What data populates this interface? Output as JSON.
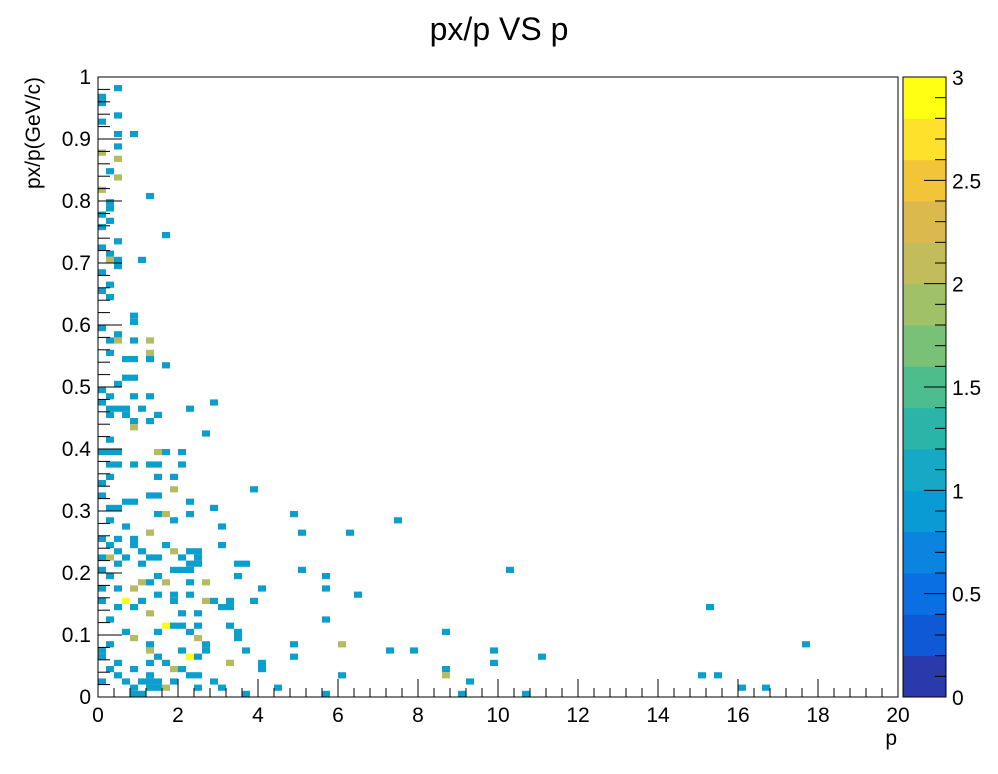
{
  "chart_data": {
    "type": "heatmap",
    "title": "px/p VS p",
    "xlabel": "p",
    "ylabel": "px/p(GeV/c)",
    "xlim": [
      0,
      20
    ],
    "ylim": [
      0,
      1
    ],
    "x_ticks": [
      "0",
      "2",
      "4",
      "6",
      "8",
      "10",
      "12",
      "14",
      "16",
      "18",
      "20"
    ],
    "y_ticks": [
      "0",
      "0.1",
      "0.2",
      "0.3",
      "0.4",
      "0.5",
      "0.6",
      "0.7",
      "0.8",
      "0.9",
      "1"
    ],
    "colorbar": {
      "range": [
        0,
        3
      ],
      "ticks": [
        "0",
        "0.5",
        "1",
        "1.5",
        "2",
        "2.5",
        "3"
      ],
      "colors": [
        "#2a3aab",
        "#0f58d6",
        "#0a6fe2",
        "#0a84de",
        "#0a9ad4",
        "#16a8c4",
        "#2ab5a8",
        "#4dbd8d",
        "#78c177",
        "#a0c167",
        "#c3bc5c",
        "#dcb94f",
        "#f2c43a",
        "#fde12a",
        "#ffff14"
      ]
    },
    "bin_width": [
      0.2,
      0.01
    ],
    "bins": [
      [
        0.5,
        0.982,
        1
      ],
      [
        0.1,
        0.968,
        1
      ],
      [
        0.1,
        0.958,
        1
      ],
      [
        0.5,
        0.938,
        1
      ],
      [
        0.1,
        0.928,
        1
      ],
      [
        0.9,
        0.908,
        1
      ],
      [
        0.5,
        0.908,
        1
      ],
      [
        0.5,
        0.888,
        1
      ],
      [
        0.1,
        0.878,
        2
      ],
      [
        0.5,
        0.868,
        2
      ],
      [
        0.3,
        0.848,
        1
      ],
      [
        0.5,
        0.838,
        2
      ],
      [
        0.1,
        0.818,
        2
      ],
      [
        1.3,
        0.808,
        1
      ],
      [
        0.3,
        0.798,
        1
      ],
      [
        0.3,
        0.788,
        1
      ],
      [
        0.1,
        0.778,
        1
      ],
      [
        0.3,
        0.768,
        1
      ],
      [
        0.1,
        0.758,
        1
      ],
      [
        1.7,
        0.745,
        1
      ],
      [
        0.5,
        0.735,
        1
      ],
      [
        0.1,
        0.725,
        1
      ],
      [
        0.3,
        0.715,
        1
      ],
      [
        0.3,
        0.705,
        2
      ],
      [
        0.5,
        0.705,
        1
      ],
      [
        1.1,
        0.705,
        1
      ],
      [
        0.5,
        0.695,
        1
      ],
      [
        0.1,
        0.685,
        1
      ],
      [
        0.3,
        0.665,
        1
      ],
      [
        0.1,
        0.655,
        1
      ],
      [
        0.3,
        0.645,
        1
      ],
      [
        0.9,
        0.615,
        1
      ],
      [
        0.9,
        0.605,
        1
      ],
      [
        0.1,
        0.595,
        1
      ],
      [
        0.5,
        0.585,
        1
      ],
      [
        0.3,
        0.575,
        1
      ],
      [
        0.5,
        0.575,
        2
      ],
      [
        0.9,
        0.575,
        1
      ],
      [
        1.3,
        0.575,
        2
      ],
      [
        1.3,
        0.555,
        2
      ],
      [
        0.3,
        0.555,
        1
      ],
      [
        0.7,
        0.545,
        1
      ],
      [
        0.9,
        0.545,
        1
      ],
      [
        1.3,
        0.545,
        1
      ],
      [
        1.7,
        0.535,
        1
      ],
      [
        0.7,
        0.515,
        1
      ],
      [
        0.9,
        0.515,
        1
      ],
      [
        0.5,
        0.505,
        1
      ],
      [
        0.1,
        0.495,
        1
      ],
      [
        0.3,
        0.485,
        1
      ],
      [
        0.9,
        0.485,
        1
      ],
      [
        1.3,
        0.485,
        1
      ],
      [
        2.9,
        0.475,
        1
      ],
      [
        0.1,
        0.475,
        1
      ],
      [
        0.3,
        0.465,
        1
      ],
      [
        0.5,
        0.465,
        1
      ],
      [
        0.7,
        0.465,
        1
      ],
      [
        1.1,
        0.465,
        1
      ],
      [
        2.3,
        0.465,
        1
      ],
      [
        1.5,
        0.455,
        1
      ],
      [
        0.3,
        0.455,
        1
      ],
      [
        0.7,
        0.455,
        1
      ],
      [
        0.9,
        0.445,
        1
      ],
      [
        1.3,
        0.445,
        1
      ],
      [
        0.9,
        0.435,
        2
      ],
      [
        2.7,
        0.425,
        1
      ],
      [
        0.3,
        0.415,
        1
      ],
      [
        0.1,
        0.395,
        1
      ],
      [
        0.3,
        0.395,
        1
      ],
      [
        0.5,
        0.395,
        1
      ],
      [
        1.5,
        0.395,
        2
      ],
      [
        1.7,
        0.395,
        1
      ],
      [
        2.1,
        0.395,
        1
      ],
      [
        0.3,
        0.375,
        1
      ],
      [
        0.5,
        0.375,
        1
      ],
      [
        0.9,
        0.375,
        1
      ],
      [
        1.3,
        0.375,
        1
      ],
      [
        1.5,
        0.375,
        1
      ],
      [
        2.1,
        0.375,
        1
      ],
      [
        1.9,
        0.355,
        1
      ],
      [
        0.3,
        0.355,
        1
      ],
      [
        1.5,
        0.355,
        1
      ],
      [
        0.1,
        0.345,
        1
      ],
      [
        1.9,
        0.335,
        2
      ],
      [
        3.9,
        0.335,
        1
      ],
      [
        0.1,
        0.325,
        1
      ],
      [
        1.3,
        0.325,
        1
      ],
      [
        1.5,
        0.325,
        1
      ],
      [
        2.3,
        0.315,
        1
      ],
      [
        0.7,
        0.315,
        1
      ],
      [
        0.9,
        0.315,
        1
      ],
      [
        0.3,
        0.305,
        1
      ],
      [
        2.9,
        0.305,
        1
      ],
      [
        0.5,
        0.305,
        1
      ],
      [
        4.9,
        0.295,
        1
      ],
      [
        1.5,
        0.295,
        1
      ],
      [
        1.7,
        0.295,
        2
      ],
      [
        2.3,
        0.295,
        1
      ],
      [
        0.3,
        0.285,
        1
      ],
      [
        1.9,
        0.285,
        1
      ],
      [
        7.5,
        0.285,
        1
      ],
      [
        3.1,
        0.275,
        1
      ],
      [
        0.7,
        0.275,
        1
      ],
      [
        1.3,
        0.265,
        2
      ],
      [
        5.1,
        0.265,
        1
      ],
      [
        6.3,
        0.265,
        1
      ],
      [
        0.1,
        0.255,
        1
      ],
      [
        0.5,
        0.255,
        1
      ],
      [
        0.9,
        0.255,
        1
      ],
      [
        3.1,
        0.245,
        1
      ],
      [
        0.3,
        0.245,
        1
      ],
      [
        0.9,
        0.245,
        1
      ],
      [
        1.7,
        0.245,
        1
      ],
      [
        0.5,
        0.235,
        1
      ],
      [
        1.1,
        0.235,
        1
      ],
      [
        1.9,
        0.235,
        2
      ],
      [
        2.3,
        0.235,
        1
      ],
      [
        2.5,
        0.235,
        1
      ],
      [
        0.1,
        0.225,
        1
      ],
      [
        0.3,
        0.225,
        2
      ],
      [
        0.7,
        0.225,
        1
      ],
      [
        1.3,
        0.225,
        1
      ],
      [
        1.5,
        0.225,
        1
      ],
      [
        2.1,
        0.225,
        1
      ],
      [
        2.5,
        0.225,
        1
      ],
      [
        3.5,
        0.215,
        1
      ],
      [
        0.5,
        0.215,
        1
      ],
      [
        1.1,
        0.215,
        1
      ],
      [
        2.3,
        0.215,
        1
      ],
      [
        2.5,
        0.215,
        1
      ],
      [
        3.7,
        0.215,
        1
      ],
      [
        10.3,
        0.205,
        1
      ],
      [
        0.1,
        0.205,
        1
      ],
      [
        1.9,
        0.205,
        1
      ],
      [
        2.1,
        0.205,
        1
      ],
      [
        2.3,
        0.205,
        1
      ],
      [
        5.1,
        0.205,
        1
      ],
      [
        0.3,
        0.195,
        1
      ],
      [
        1.5,
        0.195,
        1
      ],
      [
        3.5,
        0.195,
        1
      ],
      [
        5.7,
        0.195,
        1
      ],
      [
        1.1,
        0.185,
        2
      ],
      [
        1.7,
        0.185,
        2
      ],
      [
        2.3,
        0.185,
        1
      ],
      [
        2.7,
        0.185,
        2
      ],
      [
        1.3,
        0.185,
        1
      ],
      [
        0.5,
        0.175,
        1
      ],
      [
        0.9,
        0.175,
        2
      ],
      [
        4.1,
        0.175,
        1
      ],
      [
        5.7,
        0.175,
        1
      ],
      [
        0.1,
        0.175,
        1
      ],
      [
        1.5,
        0.165,
        1
      ],
      [
        1.9,
        0.165,
        1
      ],
      [
        2.3,
        0.165,
        1
      ],
      [
        6.5,
        0.165,
        1
      ],
      [
        0.7,
        0.155,
        3
      ],
      [
        1.1,
        0.155,
        1
      ],
      [
        1.9,
        0.155,
        1
      ],
      [
        2.7,
        0.155,
        2
      ],
      [
        2.9,
        0.155,
        1
      ],
      [
        3.3,
        0.155,
        1
      ],
      [
        0.1,
        0.155,
        1
      ],
      [
        3.9,
        0.155,
        1
      ],
      [
        15.3,
        0.145,
        1
      ],
      [
        0.9,
        0.145,
        1
      ],
      [
        1.3,
        0.135,
        2
      ],
      [
        2.1,
        0.135,
        1
      ],
      [
        2.5,
        0.135,
        1
      ],
      [
        3.1,
        0.145,
        1
      ],
      [
        0.5,
        0.145,
        1
      ],
      [
        3.3,
        0.145,
        1
      ],
      [
        5.7,
        0.125,
        1
      ],
      [
        0.3,
        0.125,
        1
      ],
      [
        1.7,
        0.115,
        3
      ],
      [
        1.9,
        0.115,
        1
      ],
      [
        2.1,
        0.115,
        1
      ],
      [
        2.5,
        0.115,
        1
      ],
      [
        3.3,
        0.115,
        1
      ],
      [
        0.7,
        0.105,
        1
      ],
      [
        1.5,
        0.105,
        1
      ],
      [
        2.3,
        0.105,
        1
      ],
      [
        3.5,
        0.105,
        1
      ],
      [
        8.7,
        0.105,
        1
      ],
      [
        0.9,
        0.095,
        2
      ],
      [
        2.5,
        0.095,
        2
      ],
      [
        3.5,
        0.095,
        1
      ],
      [
        0.3,
        0.085,
        1
      ],
      [
        1.3,
        0.085,
        1
      ],
      [
        2.7,
        0.085,
        1
      ],
      [
        4.9,
        0.085,
        1
      ],
      [
        6.1,
        0.085,
        2
      ],
      [
        17.7,
        0.085,
        1
      ],
      [
        0.1,
        0.075,
        1
      ],
      [
        1.3,
        0.075,
        2
      ],
      [
        2.1,
        0.075,
        1
      ],
      [
        2.7,
        0.075,
        1
      ],
      [
        3.7,
        0.075,
        1
      ],
      [
        7.3,
        0.075,
        1
      ],
      [
        7.9,
        0.075,
        1
      ],
      [
        9.9,
        0.075,
        1
      ],
      [
        0.1,
        0.065,
        1
      ],
      [
        1.5,
        0.065,
        1
      ],
      [
        2.3,
        0.065,
        3
      ],
      [
        2.5,
        0.065,
        1
      ],
      [
        4.9,
        0.065,
        1
      ],
      [
        11.1,
        0.065,
        1
      ],
      [
        0.5,
        0.055,
        1
      ],
      [
        1.3,
        0.055,
        1
      ],
      [
        1.7,
        0.055,
        1
      ],
      [
        3.3,
        0.055,
        2
      ],
      [
        4.1,
        0.055,
        1
      ],
      [
        9.9,
        0.055,
        1
      ],
      [
        0.3,
        0.045,
        1
      ],
      [
        0.9,
        0.045,
        1
      ],
      [
        1.9,
        0.045,
        2
      ],
      [
        2.1,
        0.045,
        1
      ],
      [
        4.1,
        0.045,
        1
      ],
      [
        8.7,
        0.045,
        1
      ],
      [
        1.3,
        0.035,
        1
      ],
      [
        0.5,
        0.035,
        1
      ],
      [
        2.3,
        0.035,
        1
      ],
      [
        2.5,
        0.035,
        1
      ],
      [
        6.1,
        0.035,
        1
      ],
      [
        8.7,
        0.035,
        2
      ],
      [
        15.1,
        0.035,
        1
      ],
      [
        15.5,
        0.035,
        1
      ],
      [
        0.7,
        0.025,
        1
      ],
      [
        1.1,
        0.025,
        1
      ],
      [
        1.5,
        0.025,
        1
      ],
      [
        1.9,
        0.025,
        1
      ],
      [
        2.9,
        0.025,
        1
      ],
      [
        9.3,
        0.025,
        1
      ],
      [
        0.1,
        0.025,
        1
      ],
      [
        1.3,
        0.015,
        1
      ],
      [
        1.5,
        0.015,
        1
      ],
      [
        1.7,
        0.015,
        2
      ],
      [
        2.5,
        0.015,
        1
      ],
      [
        3.1,
        0.015,
        1
      ],
      [
        4.5,
        0.015,
        1
      ],
      [
        16.1,
        0.015,
        1
      ],
      [
        16.7,
        0.015,
        1
      ],
      [
        0.9,
        0.005,
        1
      ],
      [
        1.1,
        0.005,
        1
      ],
      [
        3.7,
        0.005,
        1
      ],
      [
        5.7,
        0.005,
        1
      ],
      [
        9.1,
        0.005,
        1
      ],
      [
        10.7,
        0.005,
        1
      ],
      [
        0.9,
        0.015,
        1
      ],
      [
        1.3,
        0.025,
        1
      ]
    ]
  }
}
